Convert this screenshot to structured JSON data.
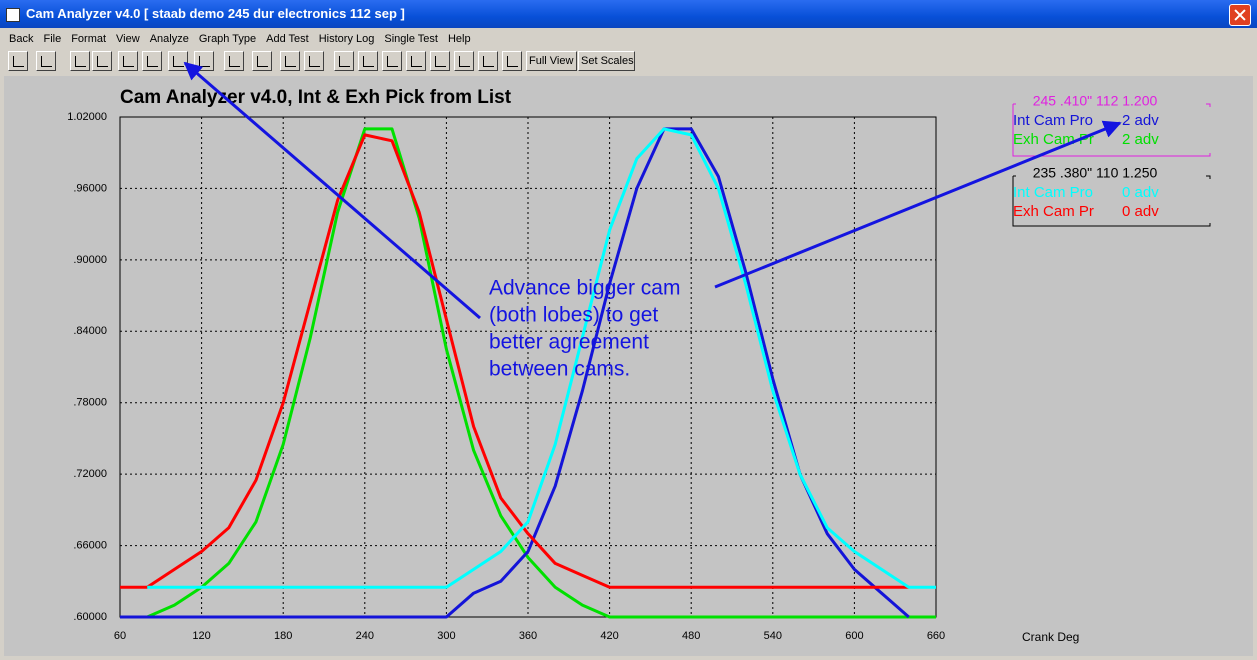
{
  "window": {
    "title": "Cam Analyzer v4.0  [ staab demo 245 dur electronics 112 sep ]",
    "menu": [
      "Back",
      "File",
      "Format",
      "View",
      "Analyze",
      "Graph Type",
      "Add Test",
      "History Log",
      "Single Test",
      "Help"
    ],
    "toolbar": [
      "Full View",
      "Set Scales"
    ]
  },
  "chart_data": {
    "type": "line",
    "title": "Cam Analyzer v4.0,   Int & Exh Pick from List",
    "x_label": "Crank Deg",
    "x": [
      60,
      80,
      100,
      120,
      140,
      160,
      180,
      200,
      220,
      240,
      260,
      280,
      300,
      320,
      340,
      360,
      380,
      400,
      420,
      440,
      460,
      480,
      500,
      520,
      540,
      560,
      580,
      600,
      620,
      640,
      660
    ],
    "xlim": [
      60,
      660
    ],
    "xticks": [
      60,
      120,
      180,
      240,
      300,
      360,
      420,
      480,
      540,
      600,
      660
    ],
    "ylim": [
      0.6,
      1.02
    ],
    "yticks": [
      {
        "value": 0.6,
        "label": ".60000"
      },
      {
        "value": 0.66,
        "label": ".66000"
      },
      {
        "value": 0.72,
        "label": ".72000"
      },
      {
        "value": 0.78,
        "label": ".78000"
      },
      {
        "value": 0.84,
        "label": ".84000"
      },
      {
        "value": 0.9,
        "label": ".90000"
      },
      {
        "value": 0.96,
        "label": ".96000"
      },
      {
        "value": 1.02,
        "label": "1.02000"
      }
    ],
    "grid": true,
    "legend_groups": [
      {
        "title": "245 .410\" 112 1.200",
        "color": "#e020e0"
      },
      {
        "title": "235 .380\" 110 1.250",
        "color": "#000000"
      }
    ],
    "series": [
      {
        "name": "Int Cam Pro",
        "adv": "2 adv",
        "color": "#1414d8",
        "values": [
          0.6,
          0.6,
          0.6,
          0.6,
          0.6,
          0.6,
          0.6,
          0.6,
          0.6,
          0.6,
          0.6,
          0.6,
          0.6,
          0.62,
          0.63,
          0.655,
          0.71,
          0.79,
          0.88,
          0.96,
          1.01,
          1.01,
          0.97,
          0.89,
          0.8,
          0.72,
          0.67,
          0.64,
          0.62,
          0.6,
          null
        ]
      },
      {
        "name": "Exh Cam Pr",
        "adv": "2 adv",
        "color": "#00e000",
        "values": [
          0.6,
          0.6,
          0.61,
          0.625,
          0.645,
          0.68,
          0.745,
          0.835,
          0.94,
          1.01,
          1.01,
          0.935,
          0.825,
          0.74,
          0.685,
          0.65,
          0.625,
          0.61,
          0.6,
          0.6,
          0.6,
          0.6,
          0.6,
          0.6,
          0.6,
          0.6,
          0.6,
          0.6,
          0.6,
          0.6,
          0.6
        ]
      },
      {
        "name": "Int Cam Pro",
        "adv": "0 adv",
        "color": "#00ffff",
        "values": [
          null,
          0.625,
          0.625,
          0.625,
          0.625,
          0.625,
          0.625,
          0.625,
          0.625,
          0.625,
          0.625,
          0.625,
          0.625,
          0.64,
          0.655,
          0.68,
          0.745,
          0.835,
          0.925,
          0.985,
          1.01,
          1.005,
          0.96,
          0.88,
          0.79,
          0.72,
          0.675,
          0.655,
          0.64,
          0.625,
          0.625
        ]
      },
      {
        "name": "Exh Cam Pr",
        "adv": "0 adv",
        "color": "#ff0000",
        "values": [
          0.625,
          0.625,
          0.64,
          0.655,
          0.675,
          0.715,
          0.78,
          0.865,
          0.95,
          1.005,
          1.0,
          0.94,
          0.85,
          0.76,
          0.7,
          0.67,
          0.645,
          0.635,
          0.625,
          0.625,
          0.625,
          0.625,
          0.625,
          0.625,
          0.625,
          0.625,
          0.625,
          0.625,
          0.625,
          0.625,
          null
        ]
      }
    ],
    "annotation": [
      "Advance bigger cam",
      "(both lobes) to get",
      "better agreement",
      "between cams."
    ]
  }
}
